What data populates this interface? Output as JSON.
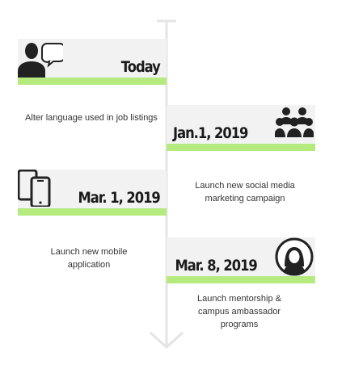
{
  "accent_color": "#b5ea7f",
  "card_color": "#f2f2f2",
  "axis_color": "#e4e4e4",
  "events": [
    {
      "date": "Today",
      "description": "Alter language used in job listings",
      "icon": "person-speech-bubble-icon"
    },
    {
      "date": "Jan.1, 2019",
      "description": "Launch new social media marketing campaign",
      "icon": "group-of-people-icon"
    },
    {
      "date": "Mar. 1, 2019",
      "description": "Launch new mobile application",
      "icon": "mobile-phones-icon"
    },
    {
      "date": "Mar. 8, 2019",
      "description": "Launch mentorship & campus ambassador programs",
      "icon": "woman-avatar-icon"
    }
  ]
}
